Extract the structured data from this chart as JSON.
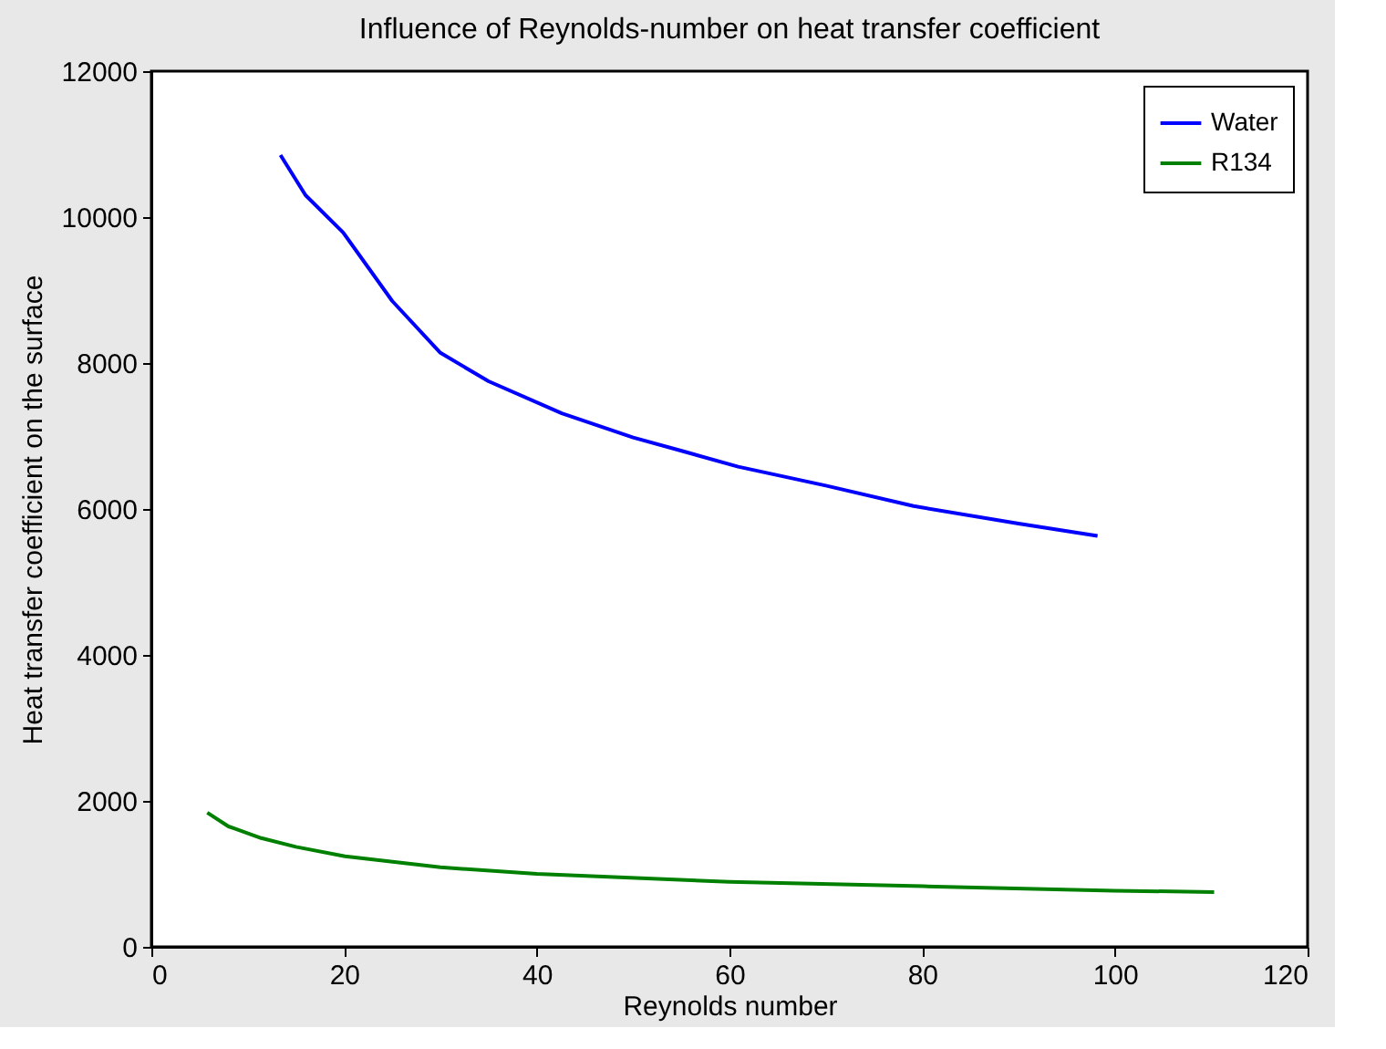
{
  "chart_data": {
    "type": "line",
    "title": "Influence of Reynolds-number on heat transfer coefficient",
    "xlabel": "Reynolds number",
    "ylabel": "Heat transfer coefficient on the surface",
    "xlim": [
      0,
      120
    ],
    "xticks": [
      0,
      20,
      40,
      60,
      80,
      100,
      120
    ],
    "ylim": [
      0,
      12000
    ],
    "yticks": [
      0,
      2000,
      4000,
      6000,
      8000,
      10000,
      12000
    ],
    "grid": false,
    "legend": "top right",
    "marker": "none",
    "line_style": "solid",
    "series": [
      {
        "name": "Water",
        "color": "#0000ff",
        "x": [
          13.4,
          16,
          19.9,
          25,
          30,
          35,
          42.6,
          50,
          55.2,
          60.9,
          70,
          79.1,
          90,
          98.2
        ],
        "values": [
          10850,
          10300,
          9790,
          8850,
          8140,
          7750,
          7310,
          6980,
          6790,
          6580,
          6320,
          6040,
          5800,
          5630
        ]
      },
      {
        "name": "R134",
        "color": "#008000",
        "x": [
          5.8,
          8,
          11.4,
          15,
          20.1,
          30,
          40,
          60,
          80.1,
          99.9,
          110.3
        ],
        "values": [
          1840,
          1650,
          1490,
          1370,
          1240,
          1090,
          1000,
          890,
          830,
          770,
          750
        ]
      }
    ]
  }
}
